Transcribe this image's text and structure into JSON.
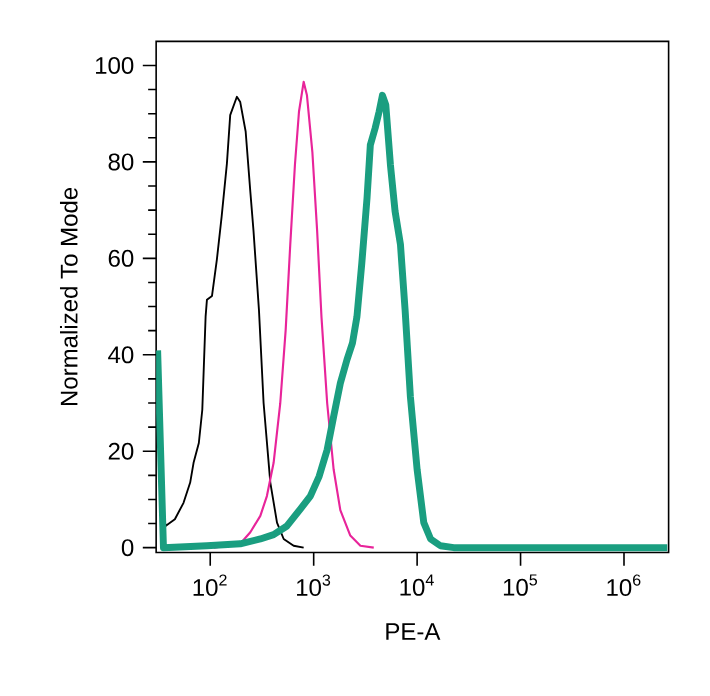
{
  "chart_data": {
    "type": "line",
    "xlabel": "PE-A",
    "ylabel": "Normalized To Mode",
    "log": "x",
    "xlim": [
      30,
      2700000
    ],
    "ylim": [
      -1,
      105
    ],
    "xticks": [
      {
        "value": 100,
        "label": "10$^{2}$"
      },
      {
        "value": 1000,
        "label": "10$^{3}$"
      },
      {
        "value": 10000,
        "label": "10$^{4}$"
      },
      {
        "value": 100000,
        "label": "10$^{5}$"
      },
      {
        "value": 1000000,
        "label": "10$^{6}$"
      }
    ],
    "yticks": [
      0,
      20,
      40,
      60,
      80,
      100
    ],
    "grid": false,
    "marker": "none",
    "line_style": "solid",
    "series": [
      {
        "color": "#000000",
        "x": [
          32.8,
          37.0,
          45.5,
          55.2,
          64.0,
          69.0,
          77.6,
          83.8,
          90.2,
          92.9,
          104,
          116,
          129,
          145,
          156,
          181,
          195,
          220,
          244,
          262,
          296,
          328,
          381,
          442,
          513,
          640,
          800
        ],
        "values": [
          12.1,
          4.5,
          5.9,
          9.3,
          13.5,
          17.6,
          21.7,
          28.6,
          47.9,
          51.4,
          52.2,
          59.8,
          68.7,
          79.7,
          89.7,
          93.5,
          92.4,
          86.3,
          73.9,
          65.7,
          49.2,
          30,
          13.5,
          5.2,
          1.8,
          0.4,
          0
        ]
      },
      {
        "color": "#e8249a",
        "x": [
          108,
          195,
          244,
          305,
          353,
          410,
          475,
          536,
          594,
          659,
          721,
          800,
          861,
          971,
          1080,
          1190,
          1350,
          1560,
          1810,
          2260,
          2830,
          3810
        ],
        "values": [
          0,
          0.8,
          3.2,
          6.6,
          10.7,
          17.6,
          29.9,
          45.1,
          62.9,
          79.4,
          90.4,
          96.6,
          93.8,
          82.1,
          65.7,
          47.8,
          30,
          16.2,
          7.8,
          2.5,
          0.4,
          0
        ]
      },
      {
        "color": "#1a9e80",
        "x": [
          31,
          35.3,
          92.9,
          195,
          305,
          410,
          552,
          743,
          929,
          1130,
          1350,
          1560,
          1810,
          2100,
          2370,
          2620,
          2920,
          3280,
          3530,
          3930,
          4290,
          4620,
          4980,
          5520,
          6120,
          6900,
          7660,
          8610,
          10000,
          11600,
          13500,
          16800,
          22600,
          2620000
        ],
        "values": [
          40.9,
          0,
          0.4,
          0.8,
          1.8,
          2.7,
          4.5,
          8,
          10.7,
          14.8,
          20.3,
          27.2,
          34.1,
          39,
          42.4,
          47.9,
          59,
          72.5,
          83.5,
          87,
          90.4,
          93.8,
          91.8,
          79.4,
          69.8,
          62.9,
          49.2,
          31.3,
          16.2,
          5.2,
          1.8,
          0.4,
          0,
          0
        ]
      }
    ]
  }
}
